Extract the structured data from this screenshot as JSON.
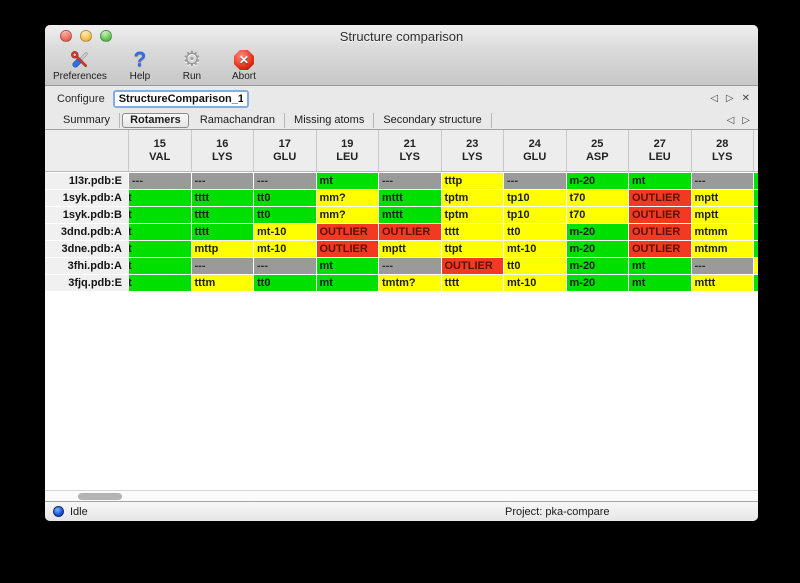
{
  "window": {
    "title": "Structure comparison"
  },
  "toolbar": {
    "items": [
      {
        "label": "Preferences",
        "icon": "tools-icon"
      },
      {
        "label": "Help",
        "icon": "question-icon"
      },
      {
        "label": "Run",
        "icon": "gear-icon"
      },
      {
        "label": "Abort",
        "icon": "abort-icon"
      }
    ]
  },
  "icons": {
    "prev": "◁",
    "next": "▷",
    "close": "✕",
    "question": "?",
    "gear": "⚙",
    "abortx": "✕"
  },
  "configure": {
    "label": "Configure",
    "value": "StructureComparison_1"
  },
  "tabs": {
    "labels": [
      "Summary",
      "Rotamers",
      "Ramachandran",
      "Missing atoms",
      "Secondary structure"
    ],
    "selected": "Rotamers"
  },
  "colors": {
    "green": "#00e000",
    "yellow": "#ffff00",
    "red": "#f13a21",
    "gray": "#9a9a9a"
  },
  "table": {
    "columns": [
      {
        "num": "15",
        "res": "VAL"
      },
      {
        "num": "16",
        "res": "LYS"
      },
      {
        "num": "17",
        "res": "GLU"
      },
      {
        "num": "19",
        "res": "LEU"
      },
      {
        "num": "21",
        "res": "LYS"
      },
      {
        "num": "23",
        "res": "LYS"
      },
      {
        "num": "24",
        "res": "GLU"
      },
      {
        "num": "25",
        "res": "ASP"
      },
      {
        "num": "27",
        "res": "LEU"
      },
      {
        "num": "28",
        "res": "LYS"
      }
    ],
    "rows": [
      {
        "label": "1l3r.pdb:E",
        "partial": "green",
        "cells": [
          {
            "t": "---",
            "c": "gray"
          },
          {
            "t": "---",
            "c": "gray"
          },
          {
            "t": "---",
            "c": "gray"
          },
          {
            "t": "mt",
            "c": "green"
          },
          {
            "t": "---",
            "c": "gray"
          },
          {
            "t": "tttp",
            "c": "yellow"
          },
          {
            "t": "---",
            "c": "gray"
          },
          {
            "t": "m-20",
            "c": "green"
          },
          {
            "t": "mt",
            "c": "green"
          },
          {
            "t": "---",
            "c": "gray"
          }
        ]
      },
      {
        "label": "1syk.pdb:A",
        "partial": "green",
        "cells": [
          {
            "t": "t",
            "c": "green",
            "clip": true
          },
          {
            "t": "tttt",
            "c": "green"
          },
          {
            "t": "tt0",
            "c": "green"
          },
          {
            "t": "mm?",
            "c": "yellow"
          },
          {
            "t": "mttt",
            "c": "green"
          },
          {
            "t": "tptm",
            "c": "yellow"
          },
          {
            "t": "tp10",
            "c": "yellow"
          },
          {
            "t": "t70",
            "c": "yellow"
          },
          {
            "t": "OUTLIER",
            "c": "red"
          },
          {
            "t": "mptt",
            "c": "yellow"
          }
        ]
      },
      {
        "label": "1syk.pdb:B",
        "partial": "green",
        "cells": [
          {
            "t": "t",
            "c": "green",
            "clip": true
          },
          {
            "t": "tttt",
            "c": "green"
          },
          {
            "t": "tt0",
            "c": "green"
          },
          {
            "t": "mm?",
            "c": "yellow"
          },
          {
            "t": "mttt",
            "c": "green"
          },
          {
            "t": "tptm",
            "c": "yellow"
          },
          {
            "t": "tp10",
            "c": "yellow"
          },
          {
            "t": "t70",
            "c": "yellow"
          },
          {
            "t": "OUTLIER",
            "c": "red"
          },
          {
            "t": "mptt",
            "c": "yellow"
          }
        ]
      },
      {
        "label": "3dnd.pdb:A",
        "partial": "green",
        "cells": [
          {
            "t": "t",
            "c": "green",
            "clip": true
          },
          {
            "t": "tttt",
            "c": "green"
          },
          {
            "t": "mt-10",
            "c": "yellow"
          },
          {
            "t": "OUTLIER",
            "c": "red"
          },
          {
            "t": "OUTLIER",
            "c": "red"
          },
          {
            "t": "tttt",
            "c": "yellow"
          },
          {
            "t": "tt0",
            "c": "yellow"
          },
          {
            "t": "m-20",
            "c": "green"
          },
          {
            "t": "OUTLIER",
            "c": "red"
          },
          {
            "t": "mtmm",
            "c": "yellow"
          }
        ]
      },
      {
        "label": "3dne.pdb:A",
        "partial": "green",
        "cells": [
          {
            "t": "t",
            "c": "green",
            "clip": true
          },
          {
            "t": "mttp",
            "c": "yellow"
          },
          {
            "t": "mt-10",
            "c": "yellow"
          },
          {
            "t": "OUTLIER",
            "c": "red"
          },
          {
            "t": "mptt",
            "c": "yellow"
          },
          {
            "t": "ttpt",
            "c": "yellow"
          },
          {
            "t": "mt-10",
            "c": "yellow"
          },
          {
            "t": "m-20",
            "c": "green"
          },
          {
            "t": "OUTLIER",
            "c": "red"
          },
          {
            "t": "mtmm",
            "c": "yellow"
          }
        ]
      },
      {
        "label": "3fhi.pdb:A",
        "partial": "yellow",
        "cells": [
          {
            "t": "t",
            "c": "green",
            "clip": true
          },
          {
            "t": "---",
            "c": "gray"
          },
          {
            "t": "---",
            "c": "gray"
          },
          {
            "t": "mt",
            "c": "green"
          },
          {
            "t": "---",
            "c": "gray"
          },
          {
            "t": "OUTLIER",
            "c": "red"
          },
          {
            "t": "tt0",
            "c": "yellow"
          },
          {
            "t": "m-20",
            "c": "green"
          },
          {
            "t": "mt",
            "c": "green"
          },
          {
            "t": "---",
            "c": "gray"
          }
        ]
      },
      {
        "label": "3fjq.pdb:E",
        "partial": "green",
        "cells": [
          {
            "t": "t",
            "c": "green",
            "clip": true
          },
          {
            "t": "tttm",
            "c": "yellow"
          },
          {
            "t": "tt0",
            "c": "green"
          },
          {
            "t": "mt",
            "c": "green"
          },
          {
            "t": "tmtm?",
            "c": "yellow"
          },
          {
            "t": "tttt",
            "c": "yellow"
          },
          {
            "t": "mt-10",
            "c": "yellow"
          },
          {
            "t": "m-20",
            "c": "green"
          },
          {
            "t": "mt",
            "c": "green"
          },
          {
            "t": "mttt",
            "c": "yellow"
          }
        ]
      }
    ]
  },
  "status": {
    "state": "Idle",
    "project": "Project: pka-compare"
  }
}
